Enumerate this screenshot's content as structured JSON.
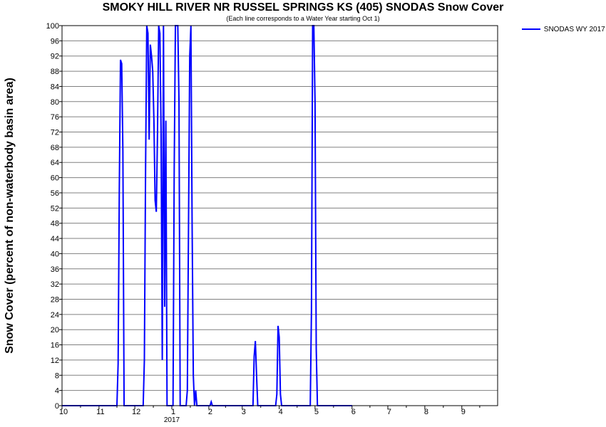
{
  "colors": {
    "series": "#0000ff",
    "grid": "#808080",
    "axis": "#000000"
  },
  "chart_data": {
    "type": "line",
    "title": "SMOKY HILL RIVER NR RUSSEL SPRINGS KS (405) SNODAS Snow Cover",
    "subtitle": "(Each line corresponds to a Water Year starting Oct 1)",
    "ylabel": "Snow Cover (percent of non-waterbody basin area)",
    "ylim": [
      0,
      100
    ],
    "yticks": [
      0,
      4,
      8,
      12,
      16,
      20,
      24,
      28,
      32,
      36,
      40,
      44,
      48,
      52,
      56,
      60,
      64,
      68,
      72,
      76,
      80,
      84,
      88,
      92,
      96,
      100
    ],
    "xlim": [
      "2016-10-01",
      "2017-10-01"
    ],
    "xticks": [
      {
        "date": "2016-10-01",
        "label": "10"
      },
      {
        "date": "2016-11-01",
        "label": "11"
      },
      {
        "date": "2016-12-01",
        "label": "12"
      },
      {
        "date": "2017-01-01",
        "label": "1"
      },
      {
        "date": "2017-02-01",
        "label": "2"
      },
      {
        "date": "2017-03-01",
        "label": "3"
      },
      {
        "date": "2017-04-01",
        "label": "4"
      },
      {
        "date": "2017-05-01",
        "label": "5"
      },
      {
        "date": "2017-06-01",
        "label": "6"
      },
      {
        "date": "2017-07-01",
        "label": "7"
      },
      {
        "date": "2017-08-01",
        "label": "8"
      },
      {
        "date": "2017-09-01",
        "label": "9"
      }
    ],
    "year_label": "2017",
    "grid": true,
    "legend": "top-right",
    "series": [
      {
        "name": "SNODAS WY 2017",
        "points": [
          [
            "2016-10-01",
            0
          ],
          [
            "2016-11-16",
            0
          ],
          [
            "2016-11-17",
            11
          ],
          [
            "2016-11-18",
            57
          ],
          [
            "2016-11-19",
            91
          ],
          [
            "2016-11-20",
            90
          ],
          [
            "2016-11-21",
            67
          ],
          [
            "2016-11-22",
            0
          ],
          [
            "2016-12-08",
            0
          ],
          [
            "2016-12-09",
            12
          ],
          [
            "2016-12-10",
            62
          ],
          [
            "2016-12-11",
            100
          ],
          [
            "2016-12-12",
            98
          ],
          [
            "2016-12-13",
            70
          ],
          [
            "2016-12-14",
            95
          ],
          [
            "2016-12-15",
            92
          ],
          [
            "2016-12-16",
            88
          ],
          [
            "2016-12-17",
            75
          ],
          [
            "2016-12-18",
            54
          ],
          [
            "2016-12-19",
            51
          ],
          [
            "2016-12-20",
            72
          ],
          [
            "2016-12-21",
            100
          ],
          [
            "2016-12-22",
            98
          ],
          [
            "2016-12-23",
            72
          ],
          [
            "2016-12-24",
            12
          ],
          [
            "2016-12-25",
            100
          ],
          [
            "2016-12-26",
            26
          ],
          [
            "2016-12-27",
            75
          ],
          [
            "2016-12-28",
            0
          ],
          [
            "2017-01-02",
            0
          ],
          [
            "2017-01-03",
            62
          ],
          [
            "2017-01-04",
            100
          ],
          [
            "2017-01-05",
            100
          ],
          [
            "2017-01-06",
            100
          ],
          [
            "2017-01-07",
            80
          ],
          [
            "2017-01-08",
            0
          ],
          [
            "2017-01-13",
            0
          ],
          [
            "2017-01-14",
            4
          ],
          [
            "2017-01-15",
            48
          ],
          [
            "2017-01-16",
            92
          ],
          [
            "2017-01-17",
            100
          ],
          [
            "2017-01-18",
            48
          ],
          [
            "2017-01-19",
            8
          ],
          [
            "2017-01-20",
            0
          ],
          [
            "2017-01-21",
            4
          ],
          [
            "2017-01-22",
            0
          ],
          [
            "2017-02-02",
            0
          ],
          [
            "2017-02-03",
            1
          ],
          [
            "2017-02-04",
            0
          ],
          [
            "2017-03-10",
            0
          ],
          [
            "2017-03-11",
            13
          ],
          [
            "2017-03-12",
            17
          ],
          [
            "2017-03-13",
            8
          ],
          [
            "2017-03-14",
            0
          ],
          [
            "2017-03-29",
            0
          ],
          [
            "2017-03-30",
            3
          ],
          [
            "2017-03-31",
            21
          ],
          [
            "2017-04-01",
            18
          ],
          [
            "2017-04-02",
            3
          ],
          [
            "2017-04-03",
            0
          ],
          [
            "2017-04-27",
            0
          ],
          [
            "2017-04-28",
            25
          ],
          [
            "2017-04-29",
            100
          ],
          [
            "2017-04-30",
            100
          ],
          [
            "2017-05-01",
            80
          ],
          [
            "2017-05-02",
            15
          ],
          [
            "2017-05-03",
            0
          ],
          [
            "2017-06-01",
            0
          ]
        ]
      }
    ]
  }
}
